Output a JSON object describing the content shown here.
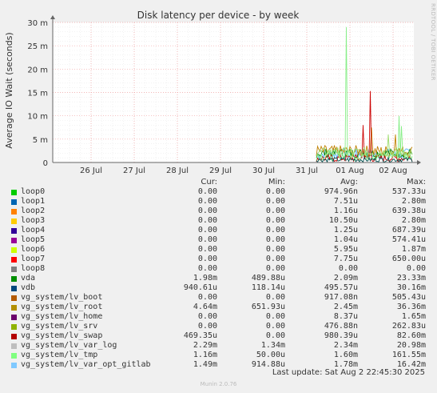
{
  "chart_data": {
    "type": "line",
    "title": "Disk latency per device - by week",
    "ylabel": "Average IO Wait (seconds)",
    "y_ticks": [
      "0",
      "5 m",
      "10 m",
      "15 m",
      "20 m",
      "25 m",
      "30 m"
    ],
    "y_tick_values": [
      0,
      0.005,
      0.01,
      0.015,
      0.02,
      0.025,
      0.03
    ],
    "ylim": [
      0,
      0.03
    ],
    "x_ticks": [
      "26 Jul",
      "27 Jul",
      "28 Jul",
      "29 Jul",
      "30 Jul",
      "31 Jul",
      "01 Aug",
      "02 Aug"
    ],
    "grid": true,
    "series_colors": {
      "lv_swap": "#cc0000",
      "lv_root": "#c08000",
      "loop8_like": "#9ddc6e",
      "lv_var_opt_gitlab": "#55b5ff",
      "lv_tmp": "#88ee88",
      "vda": "#008000",
      "vdb": "#005050"
    }
  },
  "legend": {
    "headers": {
      "cur": "Cur:",
      "min": "Min:",
      "avg": "Avg:",
      "max": "Max:"
    },
    "rows": [
      {
        "name": "loop0",
        "color": "#00cc00",
        "cur": "0.00",
        "min": "0.00",
        "avg": "974.96n",
        "max": "537.33u"
      },
      {
        "name": "loop1",
        "color": "#0066b3",
        "cur": "0.00",
        "min": "0.00",
        "avg": "7.51u",
        "max": "2.80m"
      },
      {
        "name": "loop2",
        "color": "#ff8000",
        "cur": "0.00",
        "min": "0.00",
        "avg": "1.16u",
        "max": "639.38u"
      },
      {
        "name": "loop3",
        "color": "#ffcc00",
        "cur": "0.00",
        "min": "0.00",
        "avg": "10.50u",
        "max": "2.80m"
      },
      {
        "name": "loop4",
        "color": "#330099",
        "cur": "0.00",
        "min": "0.00",
        "avg": "1.25u",
        "max": "687.39u"
      },
      {
        "name": "loop5",
        "color": "#990099",
        "cur": "0.00",
        "min": "0.00",
        "avg": "1.04u",
        "max": "574.41u"
      },
      {
        "name": "loop6",
        "color": "#ccff00",
        "cur": "0.00",
        "min": "0.00",
        "avg": "5.95u",
        "max": "1.87m"
      },
      {
        "name": "loop7",
        "color": "#ff0000",
        "cur": "0.00",
        "min": "0.00",
        "avg": "7.75u",
        "max": "650.00u"
      },
      {
        "name": "loop8",
        "color": "#808080",
        "cur": "0.00",
        "min": "0.00",
        "avg": "0.00",
        "max": "0.00"
      },
      {
        "name": "vda",
        "color": "#008f00",
        "cur": "1.98m",
        "min": "489.88u",
        "avg": "2.09m",
        "max": "23.33m"
      },
      {
        "name": "vdb",
        "color": "#00487d",
        "cur": "940.61u",
        "min": "118.14u",
        "avg": "495.57u",
        "max": "30.16m"
      },
      {
        "name": "vg_system/lv_boot",
        "color": "#b35a00",
        "cur": "0.00",
        "min": "0.00",
        "avg": "917.08n",
        "max": "505.43u"
      },
      {
        "name": "vg_system/lv_root",
        "color": "#b38f00",
        "cur": "4.64m",
        "min": "651.93u",
        "avg": "2.45m",
        "max": "36.36m"
      },
      {
        "name": "vg_system/lv_home",
        "color": "#6b006b",
        "cur": "0.00",
        "min": "0.00",
        "avg": "8.37u",
        "max": "1.65m"
      },
      {
        "name": "vg_system/lv_srv",
        "color": "#8fb300",
        "cur": "0.00",
        "min": "0.00",
        "avg": "476.88n",
        "max": "262.83u"
      },
      {
        "name": "vg_system/lv_swap",
        "color": "#b30000",
        "cur": "469.35u",
        "min": "0.00",
        "avg": "980.39u",
        "max": "82.60m"
      },
      {
        "name": "vg_system/lv_var_log",
        "color": "#bebebe",
        "cur": "2.29m",
        "min": "1.34m",
        "avg": "2.34m",
        "max": "20.98m"
      },
      {
        "name": "vg_system/lv_tmp",
        "color": "#80ff80",
        "cur": "1.16m",
        "min": "50.00u",
        "avg": "1.60m",
        "max": "161.55m"
      },
      {
        "name": "vg_system/lv_var_opt_gitlab",
        "color": "#80c9ff",
        "cur": "1.49m",
        "min": "914.88u",
        "avg": "1.78m",
        "max": "16.42m"
      }
    ]
  },
  "footer": {
    "last_update": "Last update: Sat Aug  2 22:45:30 2025",
    "munin_version": "Munin 2.0.76",
    "rrdtool": "RRDTOOL / TOBI OETIKER"
  }
}
